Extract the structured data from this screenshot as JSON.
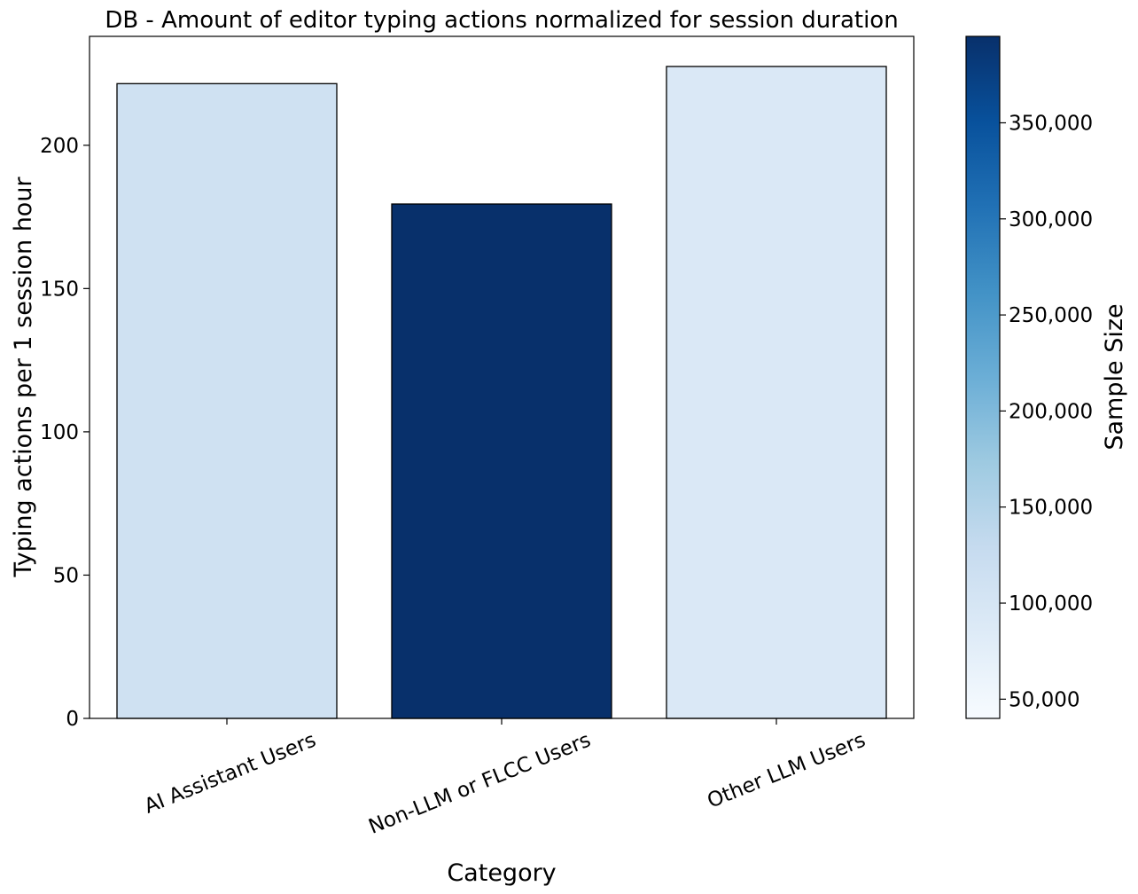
{
  "chart_data": {
    "type": "bar",
    "title": "DB - Amount of editor typing actions normalized for session duration",
    "xlabel": "Category",
    "ylabel": "Typing actions per 1 session hour",
    "categories": [
      "AI Assistant Users",
      "Non-LLM or FLCC Users",
      "Other LLM Users"
    ],
    "values": [
      221.5,
      179.5,
      227.5
    ],
    "sample_sizes": [
      112000,
      395000,
      92000
    ],
    "ylim": [
      0,
      238
    ],
    "yticks": [
      0,
      50,
      100,
      150,
      200
    ],
    "grid": false,
    "colorbar": {
      "label": "Sample Size",
      "range": [
        40000,
        395000
      ],
      "ticks": [
        50000,
        100000,
        150000,
        200000,
        250000,
        300000,
        350000
      ],
      "tick_labels": [
        "50,000",
        "100,000",
        "150,000",
        "200,000",
        "250,000",
        "300,000",
        "350,000"
      ],
      "colormap": "Blues",
      "colors": [
        "#f7fbff",
        "#deebf7",
        "#c6dbef",
        "#9ecae1",
        "#6baed6",
        "#4292c6",
        "#2171b5",
        "#08519c",
        "#08306b"
      ]
    },
    "bar_edge_color": "#000000"
  }
}
